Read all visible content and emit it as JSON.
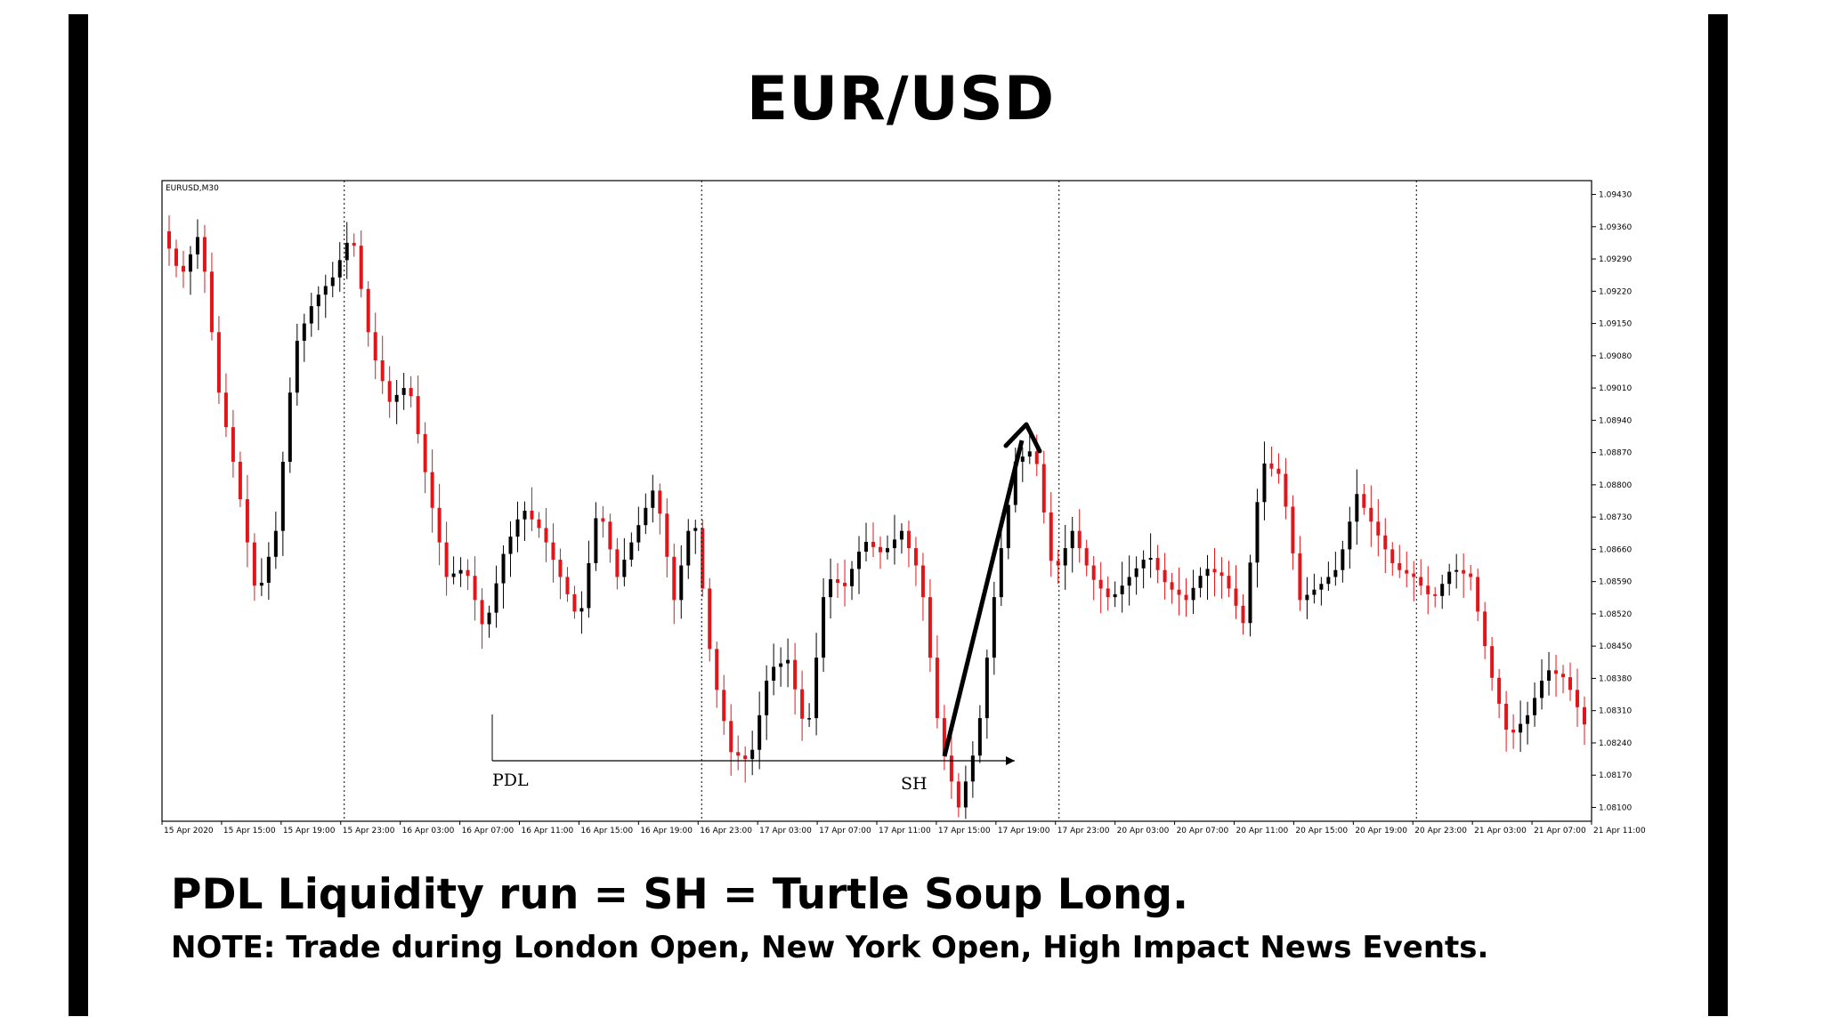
{
  "title": "EUR/USD",
  "caption": "PDL Liquidity run = SH = Turtle Soup Long.",
  "note": "NOTE: Trade during London Open, New York Open, High Impact News Events.",
  "colors": {
    "bull": "#000000",
    "bear": "#e0161b",
    "frame": "#000000",
    "background": "#ffffff"
  },
  "chart_data": {
    "type": "candlestick",
    "symbol_label": "EURUSD,M30",
    "ylim": [
      1.0807,
      1.0946
    ],
    "yticks": [
      "1.09430",
      "1.09360",
      "1.09290",
      "1.09220",
      "1.09150",
      "1.09080",
      "1.09010",
      "1.08940",
      "1.08870",
      "1.08800",
      "1.08730",
      "1.08660",
      "1.08590",
      "1.08520",
      "1.08450",
      "1.08380",
      "1.08310",
      "1.08240",
      "1.08170",
      "1.08100"
    ],
    "xticks": [
      "15 Apr 2020",
      "15 Apr 15:00",
      "15 Apr 19:00",
      "15 Apr 23:00",
      "16 Apr 03:00",
      "16 Apr 07:00",
      "16 Apr 11:00",
      "16 Apr 15:00",
      "16 Apr 19:00",
      "16 Apr 23:00",
      "17 Apr 03:00",
      "17 Apr 07:00",
      "17 Apr 11:00",
      "17 Apr 15:00",
      "17 Apr 19:00",
      "17 Apr 23:00",
      "20 Apr 03:00",
      "20 Apr 07:00",
      "20 Apr 11:00",
      "20 Apr 15:00",
      "20 Apr 19:00",
      "20 Apr 23:00",
      "21 Apr 03:00",
      "21 Apr 07:00",
      "21 Apr 11:00"
    ],
    "day_separators": [
      "15 Apr 23:00",
      "16 Apr 23:00",
      "17 Apr 23:00",
      "20 Apr 23:00"
    ],
    "anchors": [
      1.0935,
      1.0925,
      1.0935,
      1.09,
      1.088,
      1.0855,
      1.087,
      1.091,
      1.092,
      1.0925,
      1.0935,
      1.091,
      1.0898,
      1.0902,
      1.088,
      1.086,
      1.0862,
      1.0848,
      1.0865,
      1.0875,
      1.087,
      1.086,
      1.085,
      1.0876,
      1.086,
      1.087,
      1.088,
      1.0855,
      1.0875,
      1.084,
      1.0822,
      1.082,
      1.084,
      1.0842,
      1.0825,
      1.086,
      1.0858,
      1.0868,
      1.0865,
      1.087,
      1.086,
      1.0825,
      1.081,
      1.0825,
      1.086,
      1.0885,
      1.0888,
      1.086,
      1.087,
      1.086,
      1.0855,
      1.086,
      1.0865,
      1.0858,
      1.0855,
      1.0862,
      1.086,
      1.085,
      1.0885,
      1.0882,
      1.0855,
      1.0858,
      1.0862,
      1.0878,
      1.087,
      1.0862,
      1.086,
      1.0855,
      1.0862,
      1.086,
      1.084,
      1.0825,
      1.083,
      1.084,
      1.0838,
      1.0828
    ],
    "annotations": [
      {
        "label": "PDL"
      },
      {
        "label": "SH"
      }
    ]
  }
}
